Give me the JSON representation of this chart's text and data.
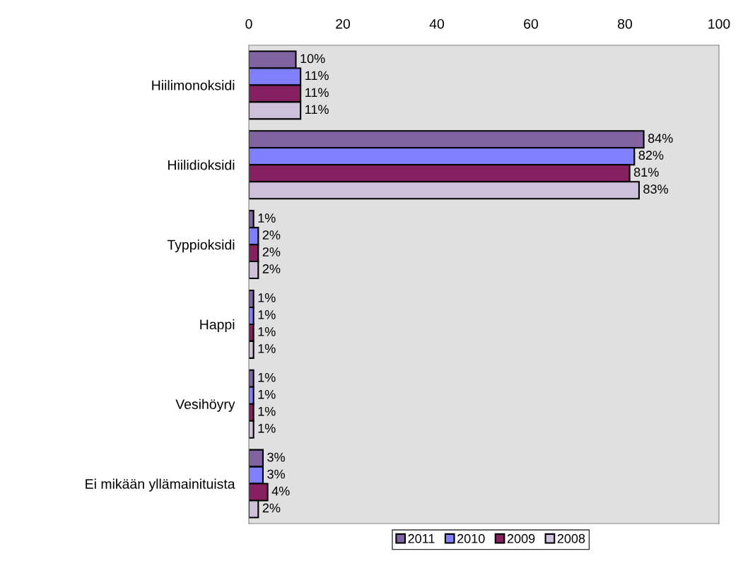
{
  "chart_data": {
    "type": "bar",
    "orientation": "horizontal",
    "categories": [
      "Hiilimonoksidi",
      "Hiilidioksidi",
      "Typpioksidi",
      "Happi",
      "Vesihöyry",
      "Ei mikään yllämainituista"
    ],
    "series": [
      {
        "name": "2011",
        "color": "#8064a2",
        "values": [
          10,
          84,
          1,
          1,
          1,
          3
        ],
        "value_labels": [
          "10%",
          "84%",
          "1%",
          "1%",
          "1%",
          "3%"
        ]
      },
      {
        "name": "2010",
        "color": "#8080ff",
        "values": [
          11,
          82,
          2,
          1,
          1,
          3
        ],
        "value_labels": [
          "11%",
          "82%",
          "2%",
          "1%",
          "1%",
          "3%"
        ]
      },
      {
        "name": "2009",
        "color": "#862060",
        "values": [
          11,
          81,
          2,
          1,
          1,
          4
        ],
        "value_labels": [
          "11%",
          "81%",
          "2%",
          "1%",
          "1%",
          "4%"
        ]
      },
      {
        "name": "2008",
        "color": "#ccc0da",
        "values": [
          11,
          83,
          2,
          1,
          1,
          2
        ],
        "value_labels": [
          "11%",
          "83%",
          "2%",
          "1%",
          "1%",
          "2%"
        ]
      }
    ],
    "xlim": [
      0,
      100
    ],
    "xticks": [
      0,
      20,
      40,
      60,
      80,
      100
    ],
    "grid": false,
    "legend": "bottom"
  }
}
